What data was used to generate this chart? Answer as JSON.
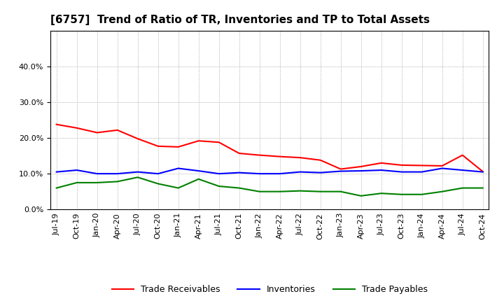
{
  "title": "[6757]  Trend of Ratio of TR, Inventories and TP to Total Assets",
  "labels": [
    "Jul-19",
    "Oct-19",
    "Jan-20",
    "Apr-20",
    "Jul-20",
    "Oct-20",
    "Jan-21",
    "Apr-21",
    "Jul-21",
    "Oct-21",
    "Jan-22",
    "Apr-22",
    "Jul-22",
    "Oct-22",
    "Jan-23",
    "Apr-23",
    "Jul-23",
    "Oct-23",
    "Jan-24",
    "Apr-24",
    "Jul-24",
    "Oct-24"
  ],
  "trade_receivables": [
    0.238,
    0.228,
    0.215,
    0.222,
    0.198,
    0.177,
    0.175,
    0.192,
    0.188,
    0.157,
    0.152,
    0.148,
    0.145,
    0.138,
    0.113,
    0.12,
    0.13,
    0.124,
    0.123,
    0.122,
    0.152,
    0.106
  ],
  "inventories": [
    0.105,
    0.11,
    0.1,
    0.1,
    0.105,
    0.1,
    0.115,
    0.108,
    0.1,
    0.103,
    0.1,
    0.1,
    0.105,
    0.103,
    0.107,
    0.108,
    0.11,
    0.105,
    0.105,
    0.115,
    0.11,
    0.105
  ],
  "trade_payables": [
    0.06,
    0.075,
    0.075,
    0.078,
    0.09,
    0.072,
    0.06,
    0.085,
    0.065,
    0.06,
    0.05,
    0.05,
    0.052,
    0.05,
    0.05,
    0.038,
    0.045,
    0.042,
    0.042,
    0.05,
    0.06,
    0.06
  ],
  "tr_color": "#FF0000",
  "inv_color": "#0000FF",
  "tp_color": "#008000",
  "ylim": [
    0.0,
    0.5
  ],
  "yticks": [
    0.0,
    0.1,
    0.2,
    0.3,
    0.4
  ],
  "background_color": "#FFFFFF",
  "grid_color": "#AAAAAA",
  "legend_labels": [
    "Trade Receivables",
    "Inventories",
    "Trade Payables"
  ],
  "title_fontsize": 11,
  "axis_fontsize": 8,
  "legend_fontsize": 9
}
